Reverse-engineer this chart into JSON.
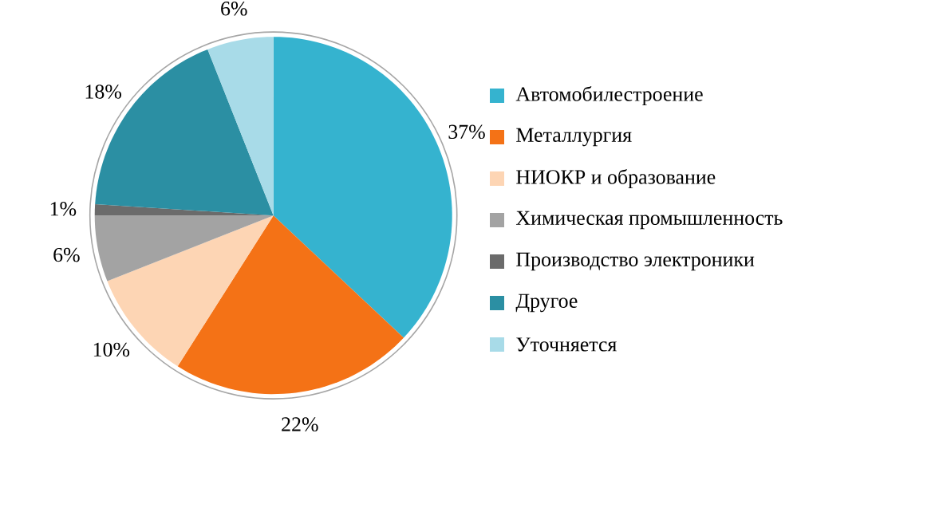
{
  "chart_data": {
    "type": "pie",
    "categories": [
      "Автомобилестроение",
      "Металлургия",
      "НИОКР и образование",
      "Химическая промышленность",
      "Производство электроники",
      "Другое",
      "Уточняется"
    ],
    "values": [
      37,
      22,
      10,
      6,
      1,
      18,
      6
    ],
    "value_labels": [
      "37%",
      "22%",
      "10%",
      "6%",
      "1%",
      "18%",
      "6%"
    ],
    "colors": [
      "#35b3cf",
      "#f47216",
      "#fdd5b4",
      "#a3a3a3",
      "#6b6b6b",
      "#2b8fa3",
      "#a8dbe8"
    ],
    "legend": "right"
  }
}
